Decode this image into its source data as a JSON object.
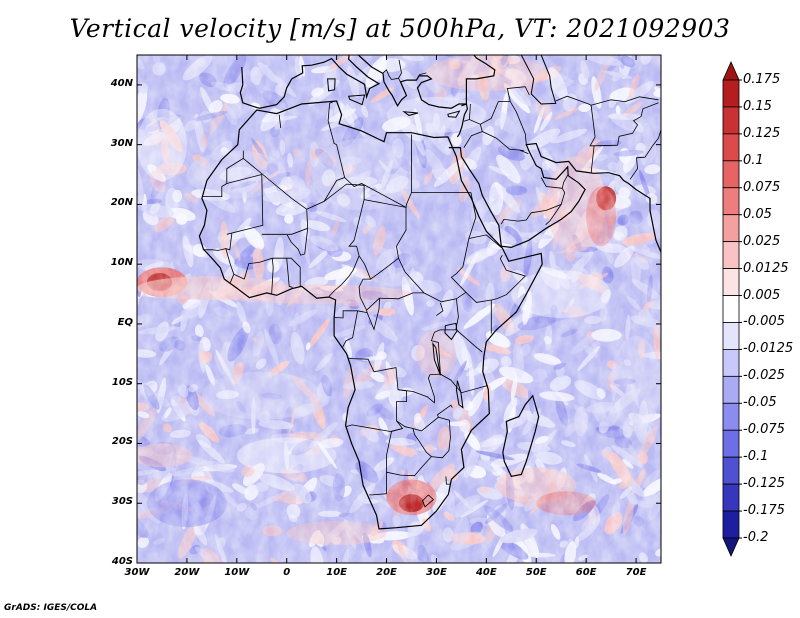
{
  "title": "Vertical velocity [m/s] at 500hPa, VT: 2021092903",
  "footer": "GrADS: IGES/COLA",
  "y_ticks": [
    "40N",
    "30N",
    "20N",
    "10N",
    "EQ",
    "10S",
    "20S",
    "30S",
    "40S"
  ],
  "x_ticks": [
    "30W",
    "20W",
    "10W",
    "0",
    "10E",
    "20E",
    "30E",
    "40E",
    "50E",
    "60E",
    "70E"
  ],
  "colorbar": {
    "labels": [
      "0.175",
      "0.15",
      "0.125",
      "0.1",
      "0.075",
      "0.05",
      "0.025",
      "0.0125",
      "0.005",
      "-0.005",
      "-0.0125",
      "-0.025",
      "-0.05",
      "-0.075",
      "-0.1",
      "-0.125",
      "-0.175",
      "-0.2"
    ],
    "colors": [
      "#a01414",
      "#b41e1e",
      "#c83232",
      "#dc4b4b",
      "#e66464",
      "#f07d7d",
      "#f5a0a0",
      "#fac3c3",
      "#fde4e4",
      "#ffffff",
      "#e4e4fd",
      "#c8c8fa",
      "#aaaaf5",
      "#8c8cf0",
      "#6e6ee6",
      "#5050d2",
      "#3737be",
      "#1e1ea0",
      "#14147d"
    ]
  },
  "map": {
    "lon_range": [
      -30,
      75
    ],
    "lat_range": [
      -40,
      45
    ],
    "colors": {
      "background_blue": "#b9b9f3",
      "light_blue": "#d6d6f8",
      "white": "#f6f6ff",
      "pink": "#f7c4c4",
      "red": "#e77070",
      "dark_red": "#b82020",
      "deep_blue": "#8c8ced"
    }
  }
}
